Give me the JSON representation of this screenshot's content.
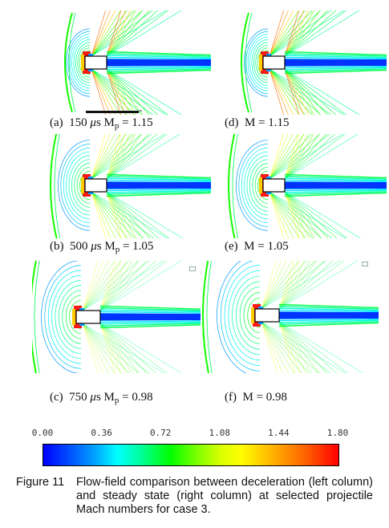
{
  "panels": [
    {
      "id": "a",
      "label": "(a)",
      "time": "150",
      "unit": "s",
      "var": "M",
      "sub": "p",
      "value": "= 1.15"
    },
    {
      "id": "d",
      "label": "(d)",
      "var": "M",
      "value": "= 1.15"
    },
    {
      "id": "b",
      "label": "(b)",
      "time": "500",
      "unit": "s",
      "var": "M",
      "sub": "p",
      "value": "= 1.05"
    },
    {
      "id": "e",
      "label": "(e)",
      "var": "M",
      "value": "= 1.05"
    },
    {
      "id": "c",
      "label": "(c)",
      "time": "750",
      "unit": "s",
      "var": "M",
      "sub": "p",
      "value": "= 0.98"
    },
    {
      "id": "f",
      "label": "(f)",
      "var": "M",
      "value": "= 0.98"
    }
  ],
  "mu_symbol": "μ",
  "colorbar": {
    "ticks": [
      "0.00",
      "0.36",
      "0.72",
      "1.08",
      "1.44",
      "1.80"
    ],
    "min": 0.0,
    "max": 1.8,
    "colors": [
      "#0000ff",
      "#00ffff",
      "#00ff00",
      "#ffff00",
      "#ff0000"
    ]
  },
  "caption": {
    "label": "Figure 11",
    "text": "Flow-field comparison between deceleration (left column) and steady state (right column) at selected projectile Mach numbers for case 3."
  }
}
